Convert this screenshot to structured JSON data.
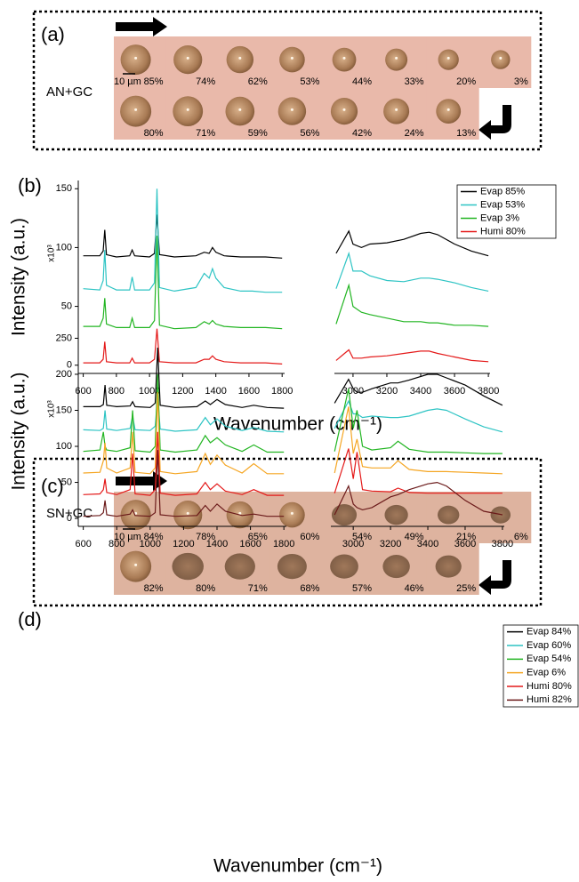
{
  "image_panels": [
    {
      "label": "(a)",
      "sample": "AN+GC",
      "scale_bar": "10 µm",
      "rows": [
        [
          "85%",
          "74%",
          "62%",
          "53%",
          "44%",
          "33%",
          "20%",
          "3%"
        ],
        [
          "80%",
          "71%",
          "59%",
          "56%",
          "42%",
          "24%",
          "13%"
        ]
      ]
    },
    {
      "label": "(c)",
      "sample": "SN+GC",
      "scale_bar": "10 µm",
      "rows": [
        [
          "84%",
          "78%",
          "65%",
          "60%",
          "54%",
          "49%",
          "21%",
          "6%"
        ],
        [
          "82%",
          "80%",
          "71%",
          "68%",
          "57%",
          "46%",
          "25%"
        ]
      ]
    }
  ],
  "chart_data": [
    {
      "type": "line",
      "label": "(b)",
      "ylabel": "Intensity (a.u.)",
      "yscale": "x10³",
      "xlabel": "Wavenumber (cm⁻¹)",
      "ylim": [
        -7,
        157
      ],
      "yticks": [
        0,
        50,
        100,
        150
      ],
      "panels": [
        {
          "xlim": [
            570,
            1815
          ],
          "xticks": [
            600,
            800,
            1000,
            1200,
            1400,
            1600,
            1800
          ],
          "x": [
            600,
            700,
            720,
            730,
            740,
            800,
            880,
            895,
            910,
            1000,
            1030,
            1045,
            1060,
            1150,
            1280,
            1330,
            1360,
            1380,
            1400,
            1450,
            1550,
            1620,
            1700,
            1800
          ]
        },
        {
          "xlim": [
            2890,
            3810
          ],
          "xticks": [
            3000,
            3200,
            3400,
            3600,
            3800
          ],
          "x": [
            2900,
            2975,
            3000,
            3050,
            3100,
            3200,
            3300,
            3400,
            3450,
            3500,
            3600,
            3700,
            3800
          ]
        }
      ],
      "series": [
        {
          "name": "Evap 85%",
          "color": "#000000",
          "values": [
            [
              93,
              93,
              97,
              115,
              94,
              92,
              93,
              98,
              93,
              92,
              95,
              128,
              94,
              92,
              93,
              96,
              95,
              100,
              96,
              93,
              92,
              92,
              92,
              91
            ],
            [
              95,
              114,
              103,
              100,
              103,
              104,
              107,
              112,
              113,
              111,
              103,
              97,
              93
            ]
          ]
        },
        {
          "name": "Evap 53%",
          "color": "#2ec4c4",
          "values": [
            [
              65,
              64,
              72,
              98,
              68,
              64,
              64,
              75,
              64,
              64,
              70,
              150,
              66,
              63,
              66,
              78,
              74,
              82,
              74,
              66,
              63,
              63,
              62,
              62
            ],
            [
              65,
              95,
              80,
              80,
              76,
              72,
              71,
              74,
              74,
              73,
              70,
              66,
              63
            ]
          ]
        },
        {
          "name": "Evap 3%",
          "color": "#22b522",
          "values": [
            [
              33,
              33,
              40,
              57,
              35,
              32,
              32,
              40,
              32,
              32,
              38,
              110,
              34,
              31,
              32,
              37,
              35,
              38,
              35,
              33,
              32,
              32,
              32,
              31
            ],
            [
              35,
              68,
              50,
              45,
              43,
              40,
              37,
              37,
              36,
              36,
              34,
              34,
              33
            ]
          ]
        },
        {
          "name": "Humi 80%",
          "color": "#e41a1a",
          "values": [
            [
              2,
              2,
              5,
              20,
              3,
              2,
              2,
              6,
              2,
              2,
              5,
              31,
              3,
              2,
              2,
              5,
              5,
              8,
              5,
              3,
              2,
              2,
              2,
              1
            ],
            [
              4,
              13,
              6,
              6,
              7,
              8,
              10,
              12,
              12,
              10,
              7,
              4,
              3
            ]
          ]
        }
      ]
    },
    {
      "type": "line",
      "label": "(d)",
      "ylabel": "Intensity (a.u.)",
      "yscale": "x10³",
      "xlabel": "Wavenumber (cm⁻¹)",
      "ylim": [
        -11,
        253
      ],
      "yticks": [
        0,
        50,
        100,
        150,
        200,
        250
      ],
      "panels": [
        {
          "xlim": [
            570,
            1815
          ],
          "xticks": [
            600,
            800,
            1000,
            1200,
            1400,
            1600,
            1800
          ],
          "x": [
            600,
            700,
            720,
            730,
            740,
            800,
            880,
            895,
            910,
            1000,
            1030,
            1045,
            1060,
            1150,
            1280,
            1330,
            1360,
            1400,
            1450,
            1550,
            1620,
            1700,
            1800
          ]
        },
        {
          "xlim": [
            2880,
            3810
          ],
          "xticks": [
            3000,
            3200,
            3400,
            3600,
            3800
          ],
          "x": [
            2900,
            2975,
            3000,
            3020,
            3050,
            3100,
            3200,
            3240,
            3300,
            3400,
            3450,
            3500,
            3600,
            3700,
            3800
          ]
        }
      ],
      "series": [
        {
          "name": "Evap 84%",
          "color": "#000000",
          "values": [
            [
              155,
              155,
              158,
              185,
              157,
              155,
              156,
              162,
              155,
              154,
              160,
              237,
              157,
              154,
              155,
              163,
              158,
              165,
              158,
              154,
              157,
              154,
              153
            ],
            [
              160,
              193,
              180,
              175,
              175,
              180,
              188,
              188,
              192,
              200,
              200,
              195,
              185,
              170,
              157
            ]
          ]
        },
        {
          "name": "Evap 60%",
          "color": "#2ec4c4",
          "values": [
            [
              123,
              122,
              125,
              150,
              124,
              122,
              125,
              142,
              123,
              122,
              128,
              170,
              124,
              121,
              123,
              140,
              130,
              138,
              128,
              122,
              126,
              121,
              120
            ],
            [
              125,
              163,
              145,
              145,
              140,
              142,
              140,
              140,
              142,
              150,
              152,
              150,
              138,
              127,
              120
            ]
          ]
        },
        {
          "name": "Evap 54%",
          "color": "#22b522",
          "values": [
            [
              93,
              95,
              120,
              100,
              95,
              93,
              98,
              150,
              94,
              92,
              100,
              200,
              95,
              92,
              95,
              115,
              105,
              112,
              102,
              93,
              102,
              92,
              92
            ],
            [
              93,
              180,
              125,
              150,
              100,
              95,
              98,
              107,
              96,
              92,
              92,
              92,
              91,
              90,
              90
            ]
          ]
        },
        {
          "name": "Evap 6%",
          "color": "#f5a623",
          "values": [
            [
              63,
              64,
              80,
              105,
              70,
              63,
              70,
              120,
              64,
              62,
              70,
              175,
              65,
              62,
              65,
              90,
              75,
              88,
              74,
              63,
              76,
              62,
              62
            ],
            [
              63,
              155,
              90,
              110,
              72,
              70,
              70,
              80,
              68,
              65,
              65,
              65,
              64,
              63,
              62
            ]
          ]
        },
        {
          "name": "Humi 80%",
          "color": "#e41a1a",
          "values": [
            [
              33,
              34,
              40,
              55,
              36,
              33,
              40,
              90,
              34,
              32,
              40,
              120,
              35,
              32,
              34,
              50,
              40,
              48,
              38,
              33,
              40,
              32,
              32
            ],
            [
              35,
              97,
              55,
              92,
              40,
              38,
              37,
              42,
              36,
              35,
              35,
              35,
              35,
              35,
              35
            ]
          ]
        },
        {
          "name": "Humi 82%",
          "color": "#6b1a1a",
          "values": [
            [
              3,
              4,
              8,
              25,
              5,
              3,
              6,
              12,
              4,
              3,
              8,
              95,
              5,
              3,
              4,
              18,
              10,
              20,
              10,
              4,
              6,
              3,
              3
            ],
            [
              5,
              45,
              20,
              15,
              12,
              15,
              30,
              33,
              40,
              48,
              50,
              45,
              25,
              10,
              5
            ]
          ]
        }
      ]
    }
  ]
}
